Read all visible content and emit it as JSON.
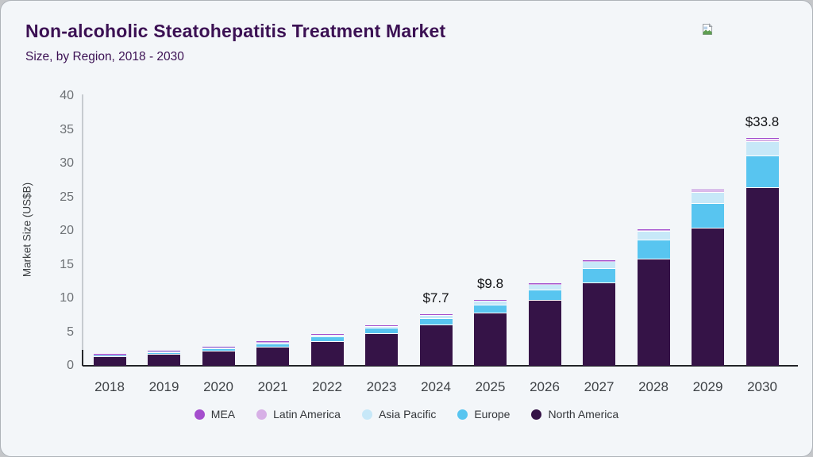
{
  "header": {
    "title": "Non-alcoholic Steatohepatitis Treatment Market",
    "subtitle": "Size, by Region, 2018 - 2030",
    "logo_icon": "broken-image-icon"
  },
  "chart_data": {
    "type": "bar",
    "stacked": true,
    "title": "Non-alcoholic Steatohepatitis Treatment Market Size, by Region, 2018 - 2030",
    "xlabel": "",
    "ylabel": "Market Size (US$B)",
    "ylim": [
      0,
      40
    ],
    "yticks": [
      0,
      5,
      10,
      15,
      20,
      25,
      30,
      35,
      40
    ],
    "grid": false,
    "legend_position": "bottom",
    "categories": [
      "2018",
      "2019",
      "2020",
      "2021",
      "2022",
      "2023",
      "2024",
      "2025",
      "2026",
      "2027",
      "2028",
      "2029",
      "2030"
    ],
    "series": [
      {
        "name": "North America",
        "color": "#351347",
        "values": [
          1.4,
          1.75,
          2.2,
          2.85,
          3.7,
          4.8,
          6.1,
          7.85,
          9.8,
          12.4,
          15.9,
          20.5,
          26.5
        ]
      },
      {
        "name": "Europe",
        "color": "#58c5f0",
        "values": [
          0.22,
          0.3,
          0.4,
          0.5,
          0.65,
          0.8,
          1.0,
          1.2,
          1.55,
          2.1,
          2.8,
          3.6,
          4.7
        ]
      },
      {
        "name": "Asia Pacific",
        "color": "#c7e8f8",
        "values": [
          0.07,
          0.1,
          0.14,
          0.18,
          0.25,
          0.32,
          0.47,
          0.6,
          0.75,
          1.0,
          1.3,
          1.65,
          2.1
        ]
      },
      {
        "name": "Latin America",
        "color": "#d7b0e6",
        "values": [
          0.01,
          0.03,
          0.04,
          0.05,
          0.07,
          0.06,
          0.09,
          0.1,
          0.07,
          0.07,
          0.15,
          0.25,
          0.35
        ]
      },
      {
        "name": "MEA",
        "color": "#a44ecd",
        "values": [
          0.01,
          0.02,
          0.02,
          0.02,
          0.03,
          0.02,
          0.04,
          0.05,
          0.03,
          0.03,
          0.05,
          0.1,
          0.15
        ]
      }
    ],
    "totals": [
      1.7,
      2.2,
      2.8,
      3.6,
      4.7,
      6.0,
      7.7,
      9.8,
      12.2,
      15.6,
      20.2,
      26.1,
      33.8
    ],
    "annotations": [
      {
        "category": "2024",
        "label": "$7.7"
      },
      {
        "category": "2025",
        "label": "$9.8"
      },
      {
        "category": "2030",
        "label": "$33.8"
      }
    ],
    "legend": [
      "MEA",
      "Latin America",
      "Asia Pacific",
      "Europe",
      "North America"
    ]
  },
  "colors": {
    "accent_title": "#3b1053",
    "axis_line": "#c6cbd0",
    "baseline": "#222428",
    "card_background": "#f3f6f9"
  }
}
